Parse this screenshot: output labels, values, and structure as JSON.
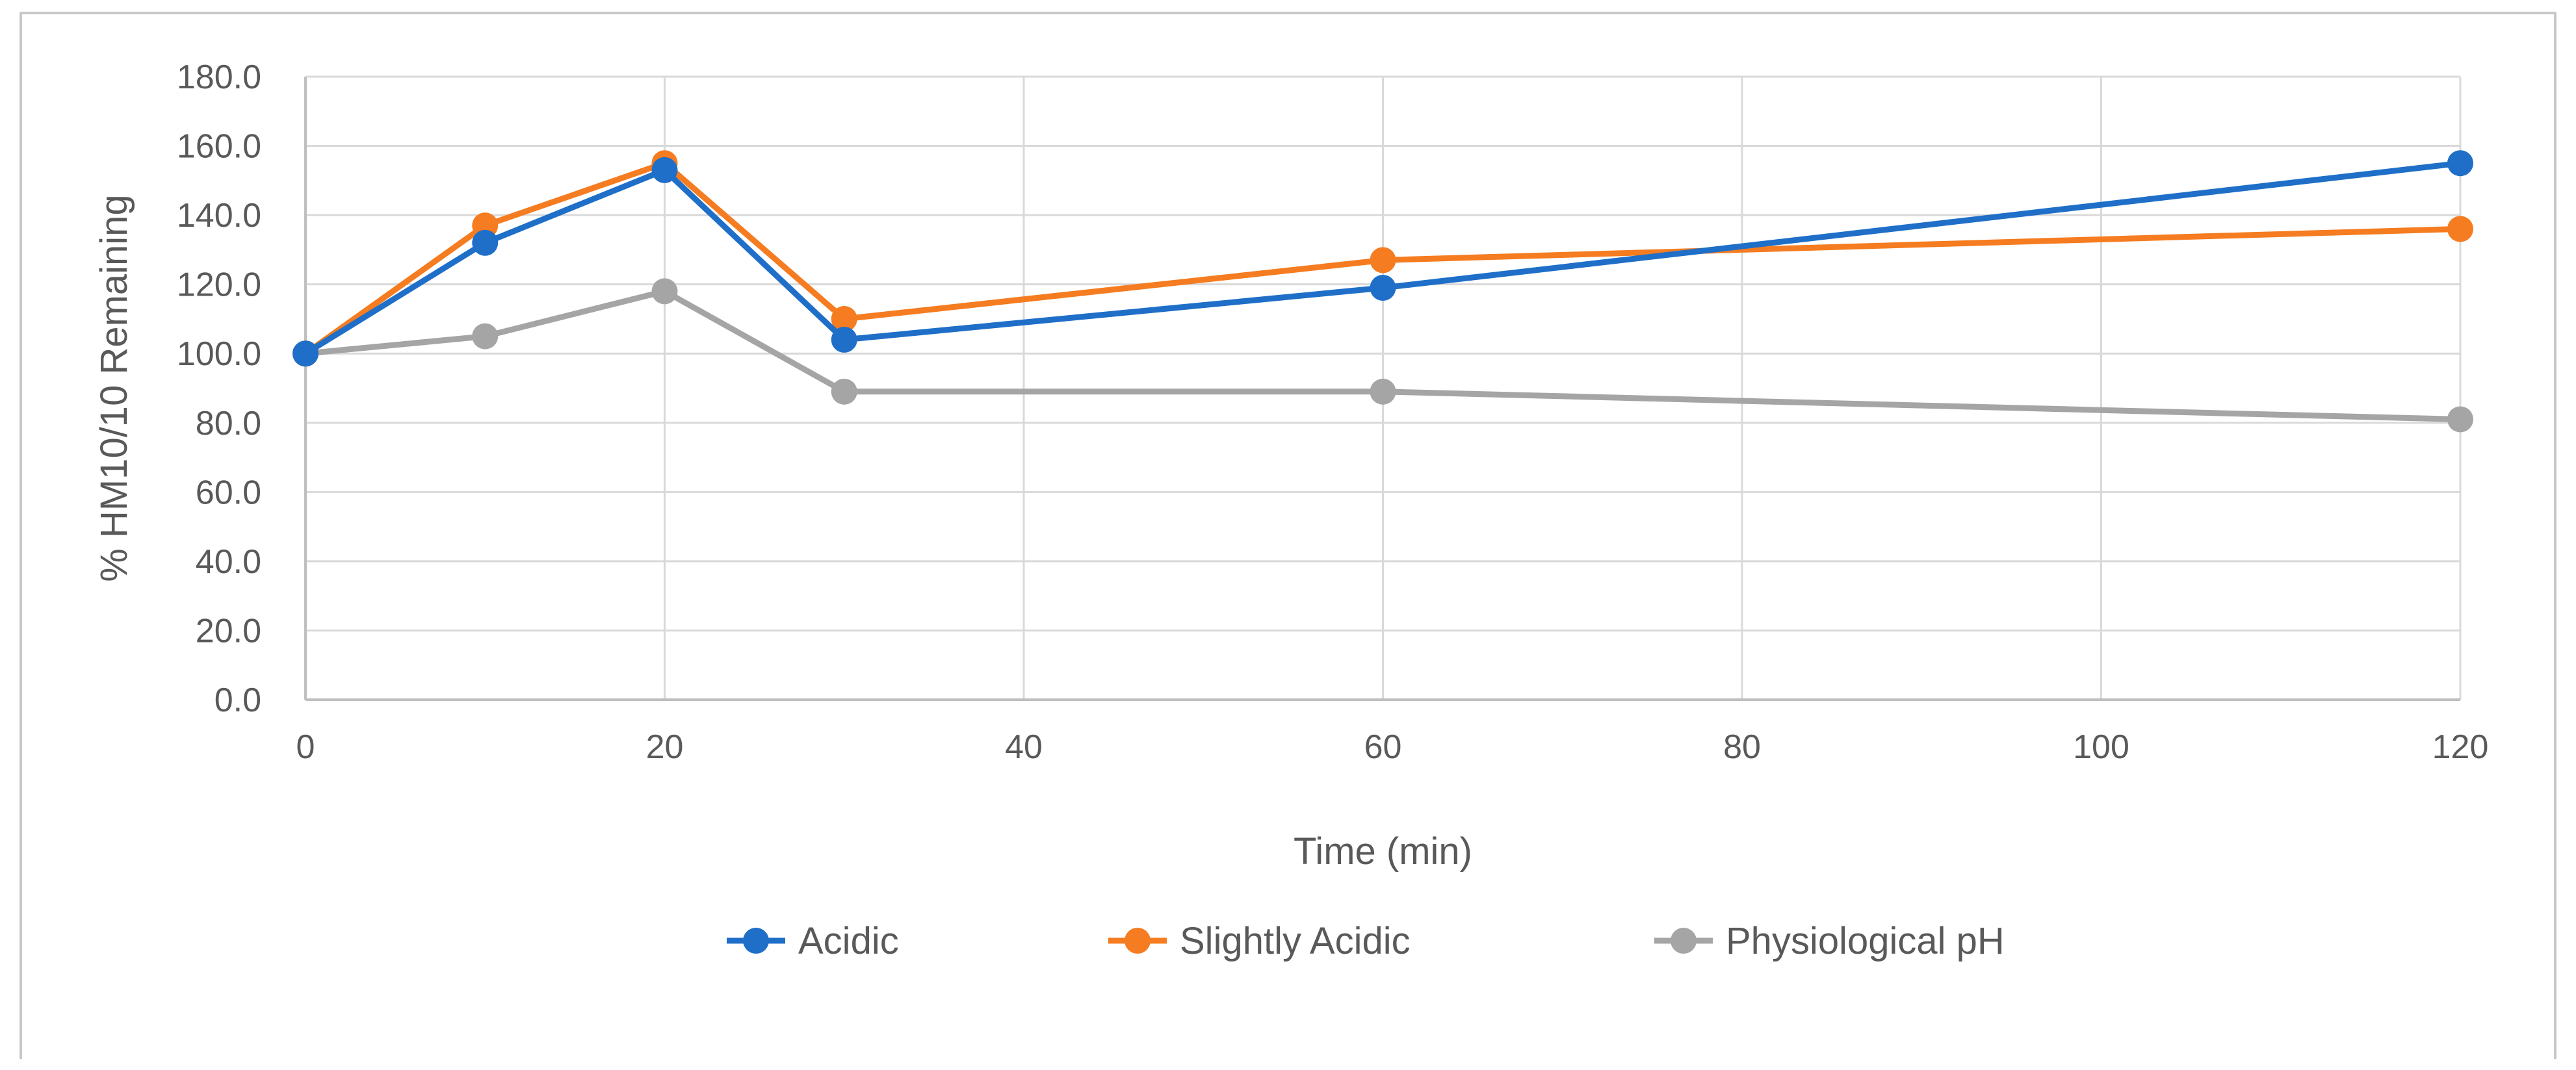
{
  "chart_data": {
    "type": "line",
    "title": "",
    "xlabel": "Time (min)",
    "ylabel": "% HM10/10 Remaining",
    "x": [
      0,
      10,
      20,
      30,
      60,
      120
    ],
    "xlim": [
      0,
      120
    ],
    "ylim": [
      0,
      180
    ],
    "x_ticks": [
      0,
      20,
      40,
      60,
      80,
      100,
      120
    ],
    "x_tick_labels": [
      "0",
      "20",
      "40",
      "60",
      "80",
      "100",
      "120"
    ],
    "y_ticks": [
      0,
      20,
      40,
      60,
      80,
      100,
      120,
      140,
      160,
      180
    ],
    "y_tick_labels": [
      "0.0",
      "20.0",
      "40.0",
      "60.0",
      "80.0",
      "100.0",
      "120.0",
      "140.0",
      "160.0",
      "180.0"
    ],
    "grid": true,
    "legend_position": "bottom",
    "series": [
      {
        "name": "Acidic",
        "color": "#1f6fc8",
        "values": [
          100,
          132,
          153,
          104,
          119,
          155
        ]
      },
      {
        "name": "Slightly Acidic",
        "color": "#f57c20",
        "values": [
          100,
          137,
          155,
          110,
          127,
          136
        ]
      },
      {
        "name": "Physiological pH",
        "color": "#a5a5a5",
        "values": [
          100,
          105,
          118,
          89,
          89,
          81
        ]
      }
    ]
  }
}
